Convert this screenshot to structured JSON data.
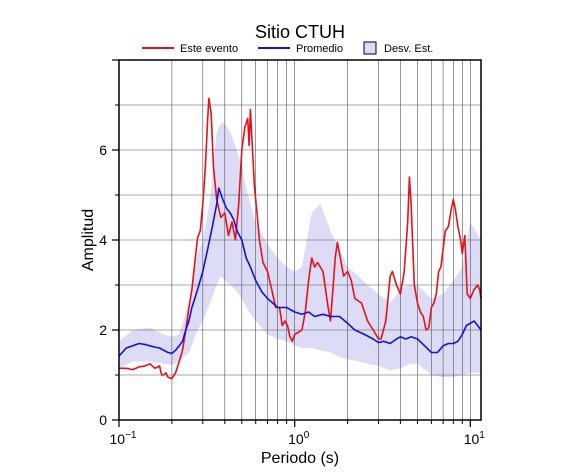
{
  "chart_data": {
    "type": "line",
    "title": "Sitio CTUH",
    "xlabel": "Periodo (s)",
    "ylabel": "Amplitud",
    "x_scale": "log",
    "xlim": [
      0.1,
      11.5
    ],
    "ylim": [
      0,
      8
    ],
    "x_ticks": [
      {
        "value": 0.1,
        "base": "10",
        "exp": "−1"
      },
      {
        "value": 1,
        "base": "10",
        "exp": "0"
      },
      {
        "value": 10,
        "base": "10",
        "exp": "1"
      }
    ],
    "y_ticks": [
      {
        "value": 0,
        "label": "0"
      },
      {
        "value": 2,
        "label": "2"
      },
      {
        "value": 4,
        "label": "4"
      },
      {
        "value": 6,
        "label": "6"
      }
    ],
    "grid": true,
    "legend_position": "top",
    "legend": [
      {
        "label": "Este evento",
        "kind": "line",
        "color": "#e8101a"
      },
      {
        "label": "Promedio",
        "kind": "line",
        "color": "#1212d8"
      },
      {
        "label": "Desv. Est.",
        "kind": "box",
        "color": "#dcdcf7"
      }
    ],
    "series": [
      {
        "name": "Este evento",
        "color": "#e8101a",
        "points": [
          [
            0.1,
            1.15
          ],
          [
            0.11,
            1.15
          ],
          [
            0.12,
            1.12
          ],
          [
            0.13,
            1.18
          ],
          [
            0.14,
            1.2
          ],
          [
            0.15,
            1.25
          ],
          [
            0.16,
            1.15
          ],
          [
            0.17,
            1.2
          ],
          [
            0.175,
            1.0
          ],
          [
            0.18,
            1.0
          ],
          [
            0.185,
            1.05
          ],
          [
            0.19,
            0.95
          ],
          [
            0.2,
            0.92
          ],
          [
            0.21,
            1.05
          ],
          [
            0.22,
            1.3
          ],
          [
            0.23,
            1.55
          ],
          [
            0.24,
            2.0
          ],
          [
            0.25,
            2.5
          ],
          [
            0.26,
            2.9
          ],
          [
            0.27,
            3.5
          ],
          [
            0.28,
            4.05
          ],
          [
            0.29,
            4.2
          ],
          [
            0.3,
            4.8
          ],
          [
            0.31,
            5.6
          ],
          [
            0.32,
            6.7
          ],
          [
            0.325,
            7.15
          ],
          [
            0.335,
            6.8
          ],
          [
            0.345,
            5.6
          ],
          [
            0.36,
            4.9
          ],
          [
            0.38,
            4.5
          ],
          [
            0.4,
            4.6
          ],
          [
            0.42,
            4.1
          ],
          [
            0.44,
            4.4
          ],
          [
            0.46,
            4.0
          ],
          [
            0.48,
            4.8
          ],
          [
            0.5,
            6.0
          ],
          [
            0.52,
            6.5
          ],
          [
            0.54,
            6.7
          ],
          [
            0.55,
            6.1
          ],
          [
            0.56,
            6.9
          ],
          [
            0.57,
            6.3
          ],
          [
            0.59,
            5.2
          ],
          [
            0.61,
            4.6
          ],
          [
            0.63,
            4.0
          ],
          [
            0.66,
            3.5
          ],
          [
            0.7,
            3.3
          ],
          [
            0.74,
            2.9
          ],
          [
            0.78,
            2.5
          ],
          [
            0.82,
            2.5
          ],
          [
            0.85,
            2.1
          ],
          [
            0.88,
            2.2
          ],
          [
            0.91,
            2.1
          ],
          [
            0.94,
            1.85
          ],
          [
            0.97,
            1.75
          ],
          [
            1.0,
            1.9
          ],
          [
            1.05,
            1.95
          ],
          [
            1.1,
            2.0
          ],
          [
            1.15,
            2.4
          ],
          [
            1.2,
            3.1
          ],
          [
            1.25,
            3.6
          ],
          [
            1.3,
            3.4
          ],
          [
            1.35,
            3.5
          ],
          [
            1.45,
            3.3
          ],
          [
            1.55,
            2.5
          ],
          [
            1.6,
            2.2
          ],
          [
            1.65,
            2.9
          ],
          [
            1.7,
            3.6
          ],
          [
            1.75,
            3.95
          ],
          [
            1.8,
            3.7
          ],
          [
            1.9,
            3.2
          ],
          [
            2.0,
            3.3
          ],
          [
            2.1,
            3.1
          ],
          [
            2.2,
            2.7
          ],
          [
            2.4,
            2.6
          ],
          [
            2.6,
            2.2
          ],
          [
            2.8,
            2.0
          ],
          [
            2.9,
            1.9
          ],
          [
            3.0,
            1.8
          ],
          [
            3.1,
            1.8
          ],
          [
            3.3,
            2.2
          ],
          [
            3.5,
            3.2
          ],
          [
            3.6,
            3.3
          ],
          [
            3.8,
            3.0
          ],
          [
            4.0,
            2.8
          ],
          [
            4.2,
            3.3
          ],
          [
            4.4,
            4.4
          ],
          [
            4.5,
            5.4
          ],
          [
            4.6,
            4.8
          ],
          [
            4.8,
            3.0
          ],
          [
            5.0,
            2.6
          ],
          [
            5.2,
            2.4
          ],
          [
            5.4,
            2.3
          ],
          [
            5.6,
            2.0
          ],
          [
            5.8,
            2.05
          ],
          [
            6.0,
            2.5
          ],
          [
            6.2,
            2.6
          ],
          [
            6.4,
            2.8
          ],
          [
            6.6,
            3.3
          ],
          [
            6.8,
            3.4
          ],
          [
            7.0,
            3.8
          ],
          [
            7.2,
            4.2
          ],
          [
            7.5,
            4.3
          ],
          [
            7.8,
            4.7
          ],
          [
            8.0,
            4.9
          ],
          [
            8.2,
            4.7
          ],
          [
            8.5,
            4.3
          ],
          [
            8.8,
            4.0
          ],
          [
            9.0,
            3.7
          ],
          [
            9.3,
            4.1
          ],
          [
            9.6,
            2.8
          ],
          [
            10.0,
            2.7
          ],
          [
            10.5,
            2.9
          ],
          [
            11.0,
            3.0
          ],
          [
            11.3,
            2.9
          ],
          [
            11.5,
            2.7
          ]
        ]
      },
      {
        "name": "Promedio",
        "color": "#1212d8",
        "points": [
          [
            0.1,
            1.42
          ],
          [
            0.11,
            1.6
          ],
          [
            0.12,
            1.65
          ],
          [
            0.13,
            1.7
          ],
          [
            0.14,
            1.68
          ],
          [
            0.15,
            1.65
          ],
          [
            0.16,
            1.62
          ],
          [
            0.17,
            1.6
          ],
          [
            0.18,
            1.55
          ],
          [
            0.19,
            1.5
          ],
          [
            0.2,
            1.48
          ],
          [
            0.21,
            1.55
          ],
          [
            0.22,
            1.65
          ],
          [
            0.23,
            1.75
          ],
          [
            0.24,
            2.0
          ],
          [
            0.25,
            2.2
          ],
          [
            0.26,
            2.5
          ],
          [
            0.27,
            2.7
          ],
          [
            0.28,
            2.9
          ],
          [
            0.29,
            3.1
          ],
          [
            0.3,
            3.3
          ],
          [
            0.32,
            3.8
          ],
          [
            0.34,
            4.3
          ],
          [
            0.36,
            4.8
          ],
          [
            0.37,
            5.15
          ],
          [
            0.39,
            4.9
          ],
          [
            0.41,
            4.7
          ],
          [
            0.43,
            4.6
          ],
          [
            0.45,
            4.45
          ],
          [
            0.47,
            4.2
          ],
          [
            0.5,
            4.0
          ],
          [
            0.53,
            3.6
          ],
          [
            0.56,
            3.4
          ],
          [
            0.6,
            3.1
          ],
          [
            0.65,
            2.85
          ],
          [
            0.7,
            2.7
          ],
          [
            0.75,
            2.6
          ],
          [
            0.8,
            2.5
          ],
          [
            0.9,
            2.5
          ],
          [
            1.0,
            2.4
          ],
          [
            1.1,
            2.35
          ],
          [
            1.2,
            2.4
          ],
          [
            1.3,
            2.3
          ],
          [
            1.45,
            2.35
          ],
          [
            1.6,
            2.3
          ],
          [
            1.8,
            2.3
          ],
          [
            2.0,
            2.15
          ],
          [
            2.2,
            2.0
          ],
          [
            2.5,
            1.9
          ],
          [
            2.8,
            1.8
          ],
          [
            3.0,
            1.72
          ],
          [
            3.2,
            1.75
          ],
          [
            3.5,
            1.7
          ],
          [
            3.8,
            1.8
          ],
          [
            4.0,
            1.85
          ],
          [
            4.3,
            1.8
          ],
          [
            4.6,
            1.85
          ],
          [
            5.0,
            1.8
          ],
          [
            5.5,
            1.65
          ],
          [
            6.0,
            1.5
          ],
          [
            6.5,
            1.5
          ],
          [
            7.0,
            1.65
          ],
          [
            7.5,
            1.7
          ],
          [
            8.0,
            1.7
          ],
          [
            8.5,
            1.75
          ],
          [
            9.0,
            1.9
          ],
          [
            9.5,
            2.1
          ],
          [
            10.0,
            2.15
          ],
          [
            10.5,
            2.2
          ],
          [
            11.0,
            2.1
          ],
          [
            11.5,
            2.0
          ]
        ]
      }
    ],
    "band": {
      "name": "Desv. Est.",
      "color": "#dcdcf7",
      "x": [
        0.1,
        0.12,
        0.15,
        0.18,
        0.2,
        0.22,
        0.25,
        0.28,
        0.3,
        0.33,
        0.36,
        0.38,
        0.4,
        0.43,
        0.46,
        0.5,
        0.55,
        0.6,
        0.7,
        0.8,
        0.9,
        1.0,
        1.1,
        1.25,
        1.4,
        1.6,
        1.8,
        2.0,
        2.3,
        2.6,
        3.0,
        3.5,
        4.0,
        4.5,
        5.0,
        6.0,
        7.0,
        8.0,
        9.0,
        10.0,
        11.5
      ],
      "lower": [
        1.15,
        1.3,
        1.3,
        1.25,
        1.22,
        1.3,
        1.5,
        2.0,
        2.2,
        2.6,
        3.0,
        3.2,
        3.1,
        3.0,
        2.9,
        2.7,
        2.4,
        2.2,
        1.9,
        1.8,
        1.75,
        1.65,
        1.6,
        1.6,
        1.55,
        1.5,
        1.4,
        1.35,
        1.3,
        1.25,
        1.2,
        1.1,
        1.15,
        1.25,
        1.25,
        1.0,
        0.95,
        0.95,
        1.0,
        1.05,
        1.05
      ],
      "upper": [
        1.75,
        2.0,
        2.05,
        1.9,
        1.85,
        1.9,
        2.6,
        3.7,
        4.0,
        4.9,
        6.4,
        6.6,
        6.6,
        6.4,
        6.1,
        5.6,
        4.9,
        4.4,
        3.9,
        3.6,
        3.4,
        3.3,
        3.4,
        4.6,
        4.8,
        4.2,
        3.8,
        3.4,
        3.2,
        3.0,
        2.8,
        2.6,
        2.9,
        3.0,
        3.0,
        2.7,
        2.8,
        3.1,
        3.4,
        4.4,
        4.0
      ]
    }
  }
}
